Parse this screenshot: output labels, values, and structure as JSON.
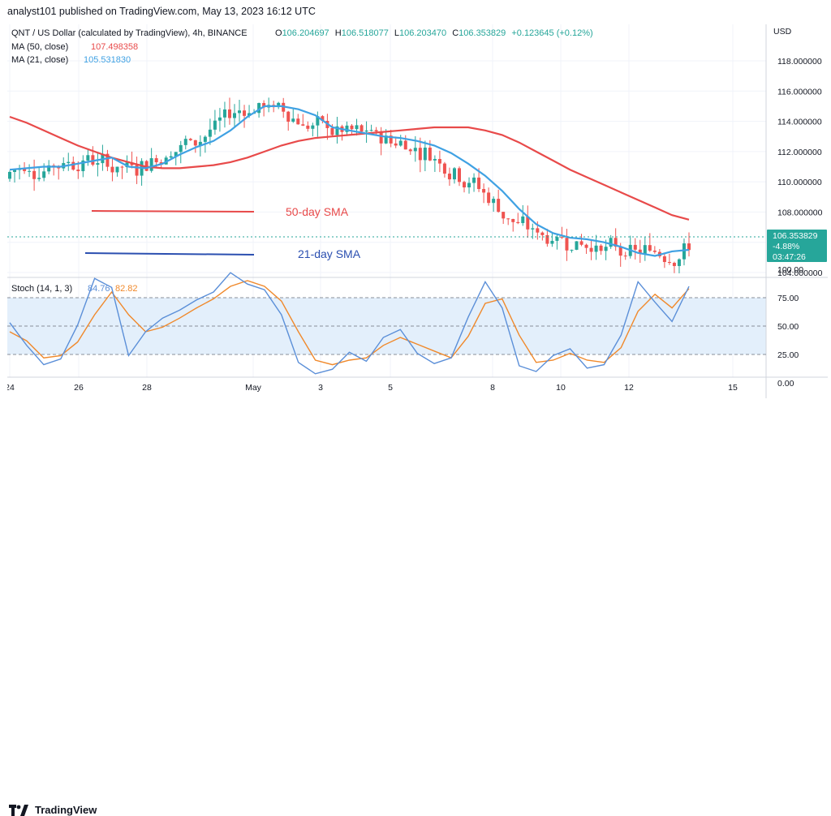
{
  "publisher_line": "analyst101 published on TradingView.com, May 13, 2023 16:12 UTC",
  "brand": "TradingView",
  "colors": {
    "up": "#26a69a",
    "down": "#ef5350",
    "ma50": "#e84a4a",
    "ma21": "#3fa1e3",
    "stoch_k": "#5b8fd8",
    "stoch_d": "#f0892b",
    "stoch_band": "#e3effb",
    "grid": "#f0f3fa",
    "price_label_bg": "#26a69a"
  },
  "legend": {
    "symbol_line": "QNT / US Dollar (calculated by TradingView), 4h, BINANCE",
    "ohlc": {
      "o_label": "O",
      "o": "106.204697",
      "h_label": "H",
      "h": "106.518077",
      "l_label": "L",
      "l": "106.203470",
      "c_label": "C",
      "c": "106.353829",
      "change": "+0.123645 (+0.12%)"
    },
    "ma50_label": "MA (50, close)",
    "ma50_value": "107.498358",
    "ma21_label": "MA (21, close)",
    "ma21_value": "105.531830"
  },
  "price_axis": {
    "currency": "USD",
    "ticks": [
      "118.000000",
      "116.000000",
      "114.000000",
      "112.000000",
      "110.000000",
      "108.000000",
      "104.000000"
    ]
  },
  "price_label": {
    "price": "106.353829",
    "change": "-4.88%",
    "countdown": "03:47:26"
  },
  "annotations": {
    "sma50_text": "50-day SMA",
    "sma21_text": "21-day SMA"
  },
  "stoch": {
    "label": "Stoch (14, 1, 3)",
    "k_value": "84.76",
    "d_value": "82.82",
    "ticks": [
      "100.00",
      "75.00",
      "50.00",
      "25.00",
      "0.00"
    ]
  },
  "time_axis": {
    "ticks": [
      "24",
      "26",
      "28",
      "May",
      "3",
      "5",
      "8",
      "10",
      "12",
      "15"
    ]
  },
  "chart_data": {
    "type": "line",
    "title": "QNT / US Dollar (calculated by TradingView), 4h, BINANCE",
    "ylabel": "USD",
    "ylim": [
      103.6,
      119.8
    ],
    "series": [
      {
        "name": "MA (50, close)",
        "values": [
          114.3,
          113.9,
          113.4,
          112.9,
          112.4,
          112.0,
          111.6,
          111.3,
          111.0,
          110.9,
          110.9,
          111.0,
          111.1,
          111.3,
          111.6,
          112.0,
          112.4,
          112.7,
          112.9,
          113.0,
          113.1,
          113.2,
          113.3,
          113.4,
          113.5,
          113.6,
          113.6,
          113.6,
          113.4,
          113.1,
          112.6,
          112.0,
          111.4,
          110.8,
          110.3,
          109.8,
          109.3,
          108.8,
          108.3,
          107.8,
          107.5
        ]
      },
      {
        "name": "MA (21, close)",
        "values": [
          110.8,
          110.9,
          111.0,
          111.0,
          111.2,
          111.4,
          111.6,
          111.0,
          110.9,
          111.2,
          111.8,
          112.3,
          112.7,
          113.4,
          114.3,
          115.0,
          115.0,
          114.8,
          114.4,
          113.6,
          113.4,
          113.2,
          113.0,
          112.9,
          112.7,
          112.4,
          111.9,
          111.2,
          110.4,
          109.4,
          108.2,
          107.2,
          106.6,
          106.3,
          106.2,
          106.0,
          105.7,
          105.3,
          105.1,
          105.4,
          105.5
        ]
      },
      {
        "name": "Stoch %K (14, 1, 3)",
        "values": [
          53,
          33,
          16,
          21,
          51,
          92,
          84,
          24,
          45,
          57,
          64,
          73,
          80,
          97,
          87,
          82,
          60,
          18,
          8,
          12,
          27,
          19,
          40,
          47,
          26,
          17,
          22,
          58,
          89,
          66,
          15,
          10,
          24,
          30,
          13,
          16,
          42,
          89,
          71,
          54,
          85
        ]
      },
      {
        "name": "Stoch %D (14, 1, 3)",
        "values": [
          45,
          37,
          22,
          24,
          36,
          60,
          80,
          60,
          45,
          49,
          57,
          66,
          74,
          85,
          90,
          85,
          72,
          45,
          20,
          16,
          20,
          22,
          33,
          40,
          34,
          28,
          22,
          41,
          70,
          74,
          42,
          18,
          20,
          26,
          20,
          18,
          31,
          63,
          78,
          66,
          83
        ]
      }
    ]
  }
}
